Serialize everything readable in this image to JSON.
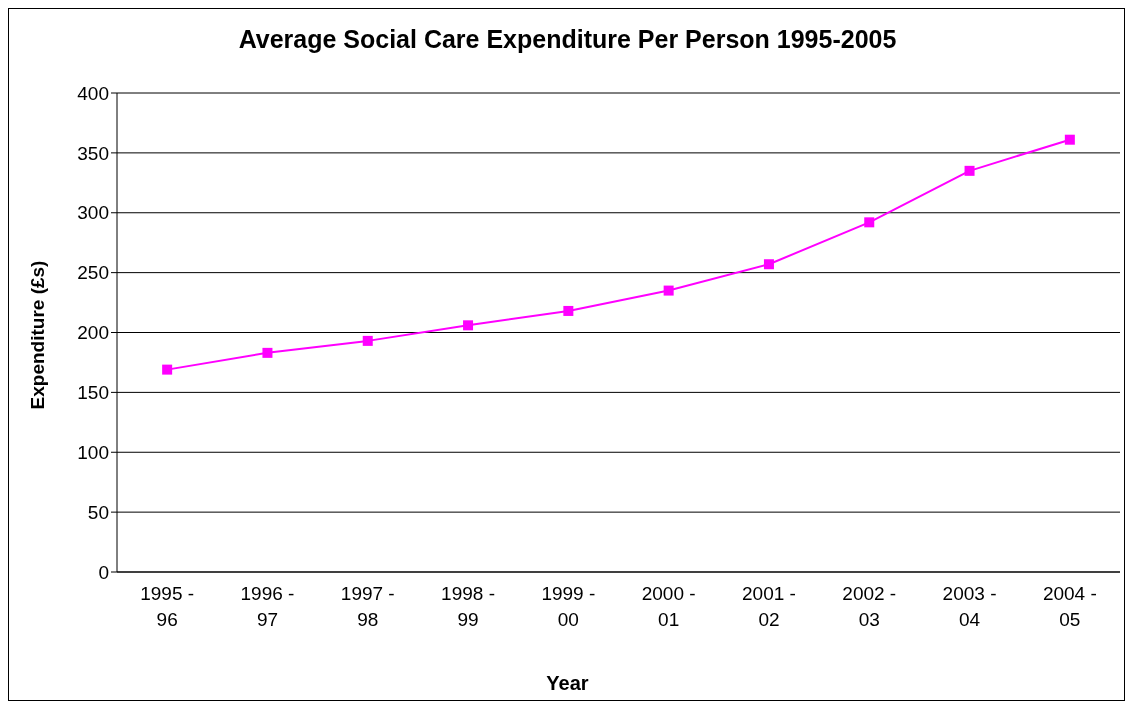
{
  "chart_data": {
    "type": "line",
    "title": "Average Social Care Expenditure Per Person 1995-2005",
    "xlabel": "Year",
    "ylabel": "Expenditure (£s)",
    "categories": [
      "1995 -\n96",
      "1996 -\n97",
      "1997 -\n98",
      "1998 -\n99",
      "1999 -\n00",
      "2000 -\n01",
      "2001 -\n02",
      "2002 -\n03",
      "2003 -\n04",
      "2004 -\n05"
    ],
    "series": [
      {
        "color": "#ff00ff",
        "values": [
          169,
          183,
          193,
          206,
          218,
          235,
          257,
          292,
          335,
          361
        ]
      }
    ],
    "ylim": [
      0,
      400
    ],
    "yticks": [
      0,
      50,
      100,
      150,
      200,
      250,
      300,
      350,
      400
    ],
    "grid": "y",
    "marker": "square",
    "line_style": "solid"
  }
}
